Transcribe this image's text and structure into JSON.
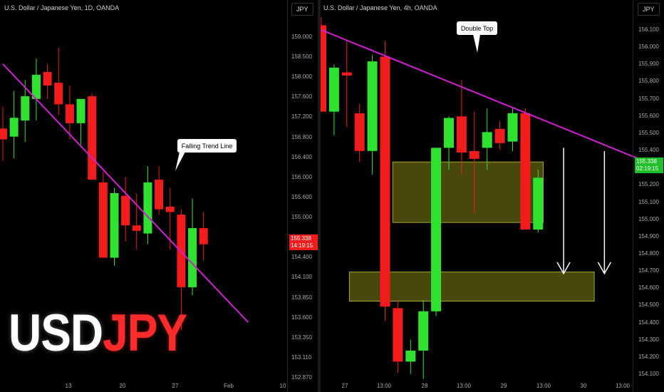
{
  "logo": {
    "part1": "USD",
    "part2": "JPY"
  },
  "colors": {
    "up": "#2fe22f",
    "down": "#f21c1c",
    "trend": "#d21ed2",
    "zone_fill": "#55550e",
    "zone_stroke": "#a9a72b",
    "arrow": "#ffffff"
  },
  "chart_data": [
    {
      "type": "candlestick",
      "title": "U.S. Dollar / Japanese Yen, 1D, OANDA",
      "currency": "JPY",
      "last_price": "155.338",
      "countdown": "14:19:15",
      "ylim": [
        152.87,
        159.2
      ],
      "y_ticks": [
        "159.000",
        "158.500",
        "158.000",
        "157.600",
        "157.200",
        "156.800",
        "156.400",
        "156.000",
        "155.600",
        "155.000",
        "154.700",
        "154.400",
        "154.100",
        "153.850",
        "153.600",
        "153.350",
        "153.110",
        "152.870"
      ],
      "x_ticks": [
        "13",
        "20",
        "27",
        "Feb",
        "10"
      ],
      "candles": [
        {
          "o": 157.5,
          "h": 157.9,
          "l": 156.9,
          "c": 157.3
        },
        {
          "o": 157.35,
          "h": 158.2,
          "l": 156.95,
          "c": 157.7
        },
        {
          "o": 157.65,
          "h": 158.4,
          "l": 157.25,
          "c": 158.1
        },
        {
          "o": 158.05,
          "h": 158.8,
          "l": 157.65,
          "c": 158.5
        },
        {
          "o": 158.55,
          "h": 158.7,
          "l": 158.05,
          "c": 158.3
        },
        {
          "o": 158.35,
          "h": 159.0,
          "l": 157.75,
          "c": 157.95
        },
        {
          "o": 157.95,
          "h": 158.3,
          "l": 157.3,
          "c": 157.6
        },
        {
          "o": 157.6,
          "h": 158.05,
          "l": 157.2,
          "c": 158.05
        },
        {
          "o": 158.1,
          "h": 158.15,
          "l": 156.55,
          "c": 156.55
        },
        {
          "o": 156.5,
          "h": 156.7,
          "l": 155.1,
          "c": 155.1
        },
        {
          "o": 155.1,
          "h": 156.4,
          "l": 154.95,
          "c": 156.3
        },
        {
          "o": 156.25,
          "h": 156.6,
          "l": 155.4,
          "c": 155.7
        },
        {
          "o": 155.7,
          "h": 156.3,
          "l": 155.25,
          "c": 155.6
        },
        {
          "o": 155.55,
          "h": 156.8,
          "l": 155.35,
          "c": 156.5
        },
        {
          "o": 156.55,
          "h": 156.8,
          "l": 155.9,
          "c": 156.0
        },
        {
          "o": 156.05,
          "h": 156.4,
          "l": 155.25,
          "c": 155.95
        },
        {
          "o": 155.9,
          "h": 156.0,
          "l": 153.75,
          "c": 154.55
        },
        {
          "o": 154.55,
          "h": 156.2,
          "l": 154.4,
          "c": 155.65
        },
        {
          "o": 155.65,
          "h": 155.95,
          "l": 155.05,
          "c": 155.35
        }
      ],
      "trend_line": [
        {
          "i": 0,
          "y": 158.7
        },
        {
          "i": 22,
          "y": 153.9
        }
      ],
      "annotation": "Falling Trend Line"
    },
    {
      "type": "candlestick",
      "title": "U.S. Dollar / Japanese Yen, 4h, OANDA",
      "currency": "JPY",
      "last_price": "155.338",
      "countdown": "02:19:15",
      "ylim": [
        154.08,
        156.27
      ],
      "y_ticks": [
        "156.100",
        "156.000",
        "155.900",
        "155.800",
        "155.700",
        "155.600",
        "155.500",
        "155.400",
        "155.300",
        "155.200",
        "155.100",
        "155.000",
        "154.900",
        "154.800",
        "154.700",
        "154.600",
        "154.500",
        "154.400",
        "154.300",
        "154.200",
        "154.100"
      ],
      "x_ticks": [
        "27",
        "13:00",
        "28",
        "13:00",
        "29",
        "13:00",
        "30",
        "13:00"
      ],
      "candles": [
        {
          "o": 156.3,
          "h": 156.35,
          "l": 155.75,
          "c": 155.75
        },
        {
          "o": 155.75,
          "h": 156.05,
          "l": 155.6,
          "c": 156.03
        },
        {
          "o": 156.0,
          "h": 156.2,
          "l": 155.65,
          "c": 155.98
        },
        {
          "o": 155.74,
          "h": 155.8,
          "l": 155.43,
          "c": 155.5
        },
        {
          "o": 155.5,
          "h": 156.11,
          "l": 155.35,
          "c": 156.07
        },
        {
          "o": 156.1,
          "h": 156.2,
          "l": 154.42,
          "c": 154.51
        },
        {
          "o": 154.5,
          "h": 154.55,
          "l": 154.09,
          "c": 154.16
        },
        {
          "o": 154.16,
          "h": 154.3,
          "l": 154.08,
          "c": 154.23
        },
        {
          "o": 154.23,
          "h": 154.55,
          "l": 154.05,
          "c": 154.48
        },
        {
          "o": 154.48,
          "h": 155.52,
          "l": 154.45,
          "c": 155.52
        },
        {
          "o": 155.52,
          "h": 155.72,
          "l": 155.38,
          "c": 155.71
        },
        {
          "o": 155.72,
          "h": 155.95,
          "l": 155.35,
          "c": 155.49
        },
        {
          "o": 155.5,
          "h": 155.75,
          "l": 155.1,
          "c": 155.45
        },
        {
          "o": 155.52,
          "h": 155.77,
          "l": 155.38,
          "c": 155.62
        },
        {
          "o": 155.64,
          "h": 155.69,
          "l": 155.51,
          "c": 155.55
        },
        {
          "o": 155.56,
          "h": 155.77,
          "l": 155.5,
          "c": 155.74
        },
        {
          "o": 155.74,
          "h": 155.77,
          "l": 155.01,
          "c": 155.0
        },
        {
          "o": 155.0,
          "h": 155.38,
          "l": 154.98,
          "c": 155.33
        }
      ],
      "trend_line": [
        {
          "i": 0,
          "y": 156.27
        },
        {
          "i": 25.2,
          "y": 155.44
        }
      ],
      "zones": [
        {
          "i0": 5.6,
          "i1": 17.4,
          "y0": 155.045,
          "y1": 155.43
        },
        {
          "i0": 2.2,
          "i1": 21.4,
          "y0": 154.545,
          "y1": 154.73
        }
      ],
      "arrows": [
        {
          "i": 19.0,
          "y0": 155.52,
          "y1": 154.72
        },
        {
          "i": 22.2,
          "y0": 155.5,
          "y1": 154.72
        }
      ],
      "annotation": "Double Top"
    }
  ]
}
